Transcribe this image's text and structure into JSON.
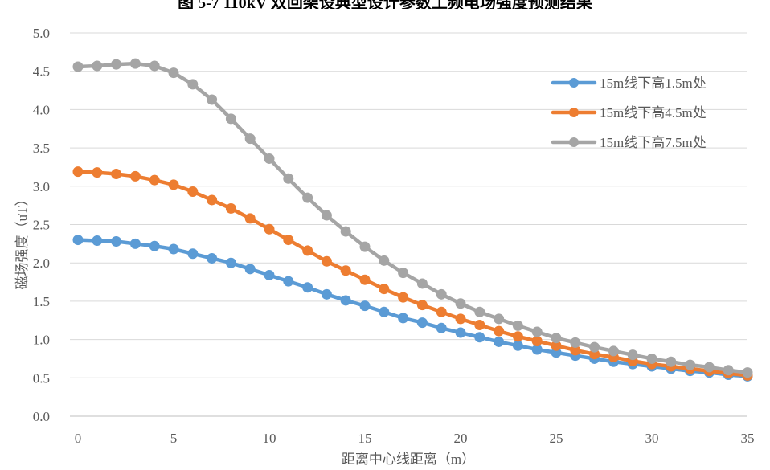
{
  "figure_caption": "图 5-7  110kV 双回架设典型设计参数工频电场强度预测结果",
  "chart_data": {
    "type": "line",
    "title": "",
    "xlabel": "距离中心线距离（m）",
    "ylabel": "磁场强度（uT）",
    "xlim": [
      0,
      35
    ],
    "ylim": [
      0,
      5
    ],
    "x_ticks": [
      "0",
      "5",
      "10",
      "15",
      "20",
      "25",
      "30",
      "35"
    ],
    "y_ticks": [
      "0.0",
      "0.5",
      "1.0",
      "1.5",
      "2.0",
      "2.5",
      "3.0",
      "3.5",
      "4.0",
      "4.5",
      "5.0"
    ],
    "grid": true,
    "legend_position": "top-right",
    "x": [
      0,
      1,
      2,
      3,
      4,
      5,
      6,
      7,
      8,
      9,
      10,
      11,
      12,
      13,
      14,
      15,
      16,
      17,
      18,
      19,
      20,
      21,
      22,
      23,
      24,
      25,
      26,
      27,
      28,
      29,
      30,
      31,
      32,
      33,
      34,
      35
    ],
    "series": [
      {
        "name": "15m线下高1.5m处",
        "color": "#5b9bd5",
        "values": [
          2.3,
          2.29,
          2.28,
          2.25,
          2.22,
          2.18,
          2.12,
          2.06,
          2.0,
          1.92,
          1.84,
          1.76,
          1.68,
          1.59,
          1.51,
          1.44,
          1.36,
          1.28,
          1.22,
          1.15,
          1.09,
          1.03,
          0.97,
          0.92,
          0.87,
          0.83,
          0.79,
          0.75,
          0.71,
          0.68,
          0.65,
          0.62,
          0.59,
          0.57,
          0.54,
          0.52
        ]
      },
      {
        "name": "15m线下高4.5m处",
        "color": "#ed7d31",
        "values": [
          3.19,
          3.18,
          3.16,
          3.13,
          3.08,
          3.02,
          2.93,
          2.82,
          2.71,
          2.58,
          2.44,
          2.3,
          2.16,
          2.02,
          1.9,
          1.78,
          1.66,
          1.55,
          1.45,
          1.36,
          1.27,
          1.19,
          1.11,
          1.04,
          0.98,
          0.92,
          0.86,
          0.81,
          0.77,
          0.72,
          0.68,
          0.65,
          0.62,
          0.59,
          0.56,
          0.53
        ]
      },
      {
        "name": "15m线下高7.5m处",
        "color": "#a5a5a5",
        "values": [
          4.56,
          4.57,
          4.59,
          4.6,
          4.57,
          4.48,
          4.33,
          4.13,
          3.88,
          3.62,
          3.36,
          3.1,
          2.85,
          2.62,
          2.41,
          2.21,
          2.03,
          1.87,
          1.73,
          1.59,
          1.47,
          1.36,
          1.27,
          1.18,
          1.1,
          1.02,
          0.96,
          0.9,
          0.85,
          0.8,
          0.75,
          0.71,
          0.67,
          0.64,
          0.6,
          0.57
        ]
      }
    ]
  }
}
